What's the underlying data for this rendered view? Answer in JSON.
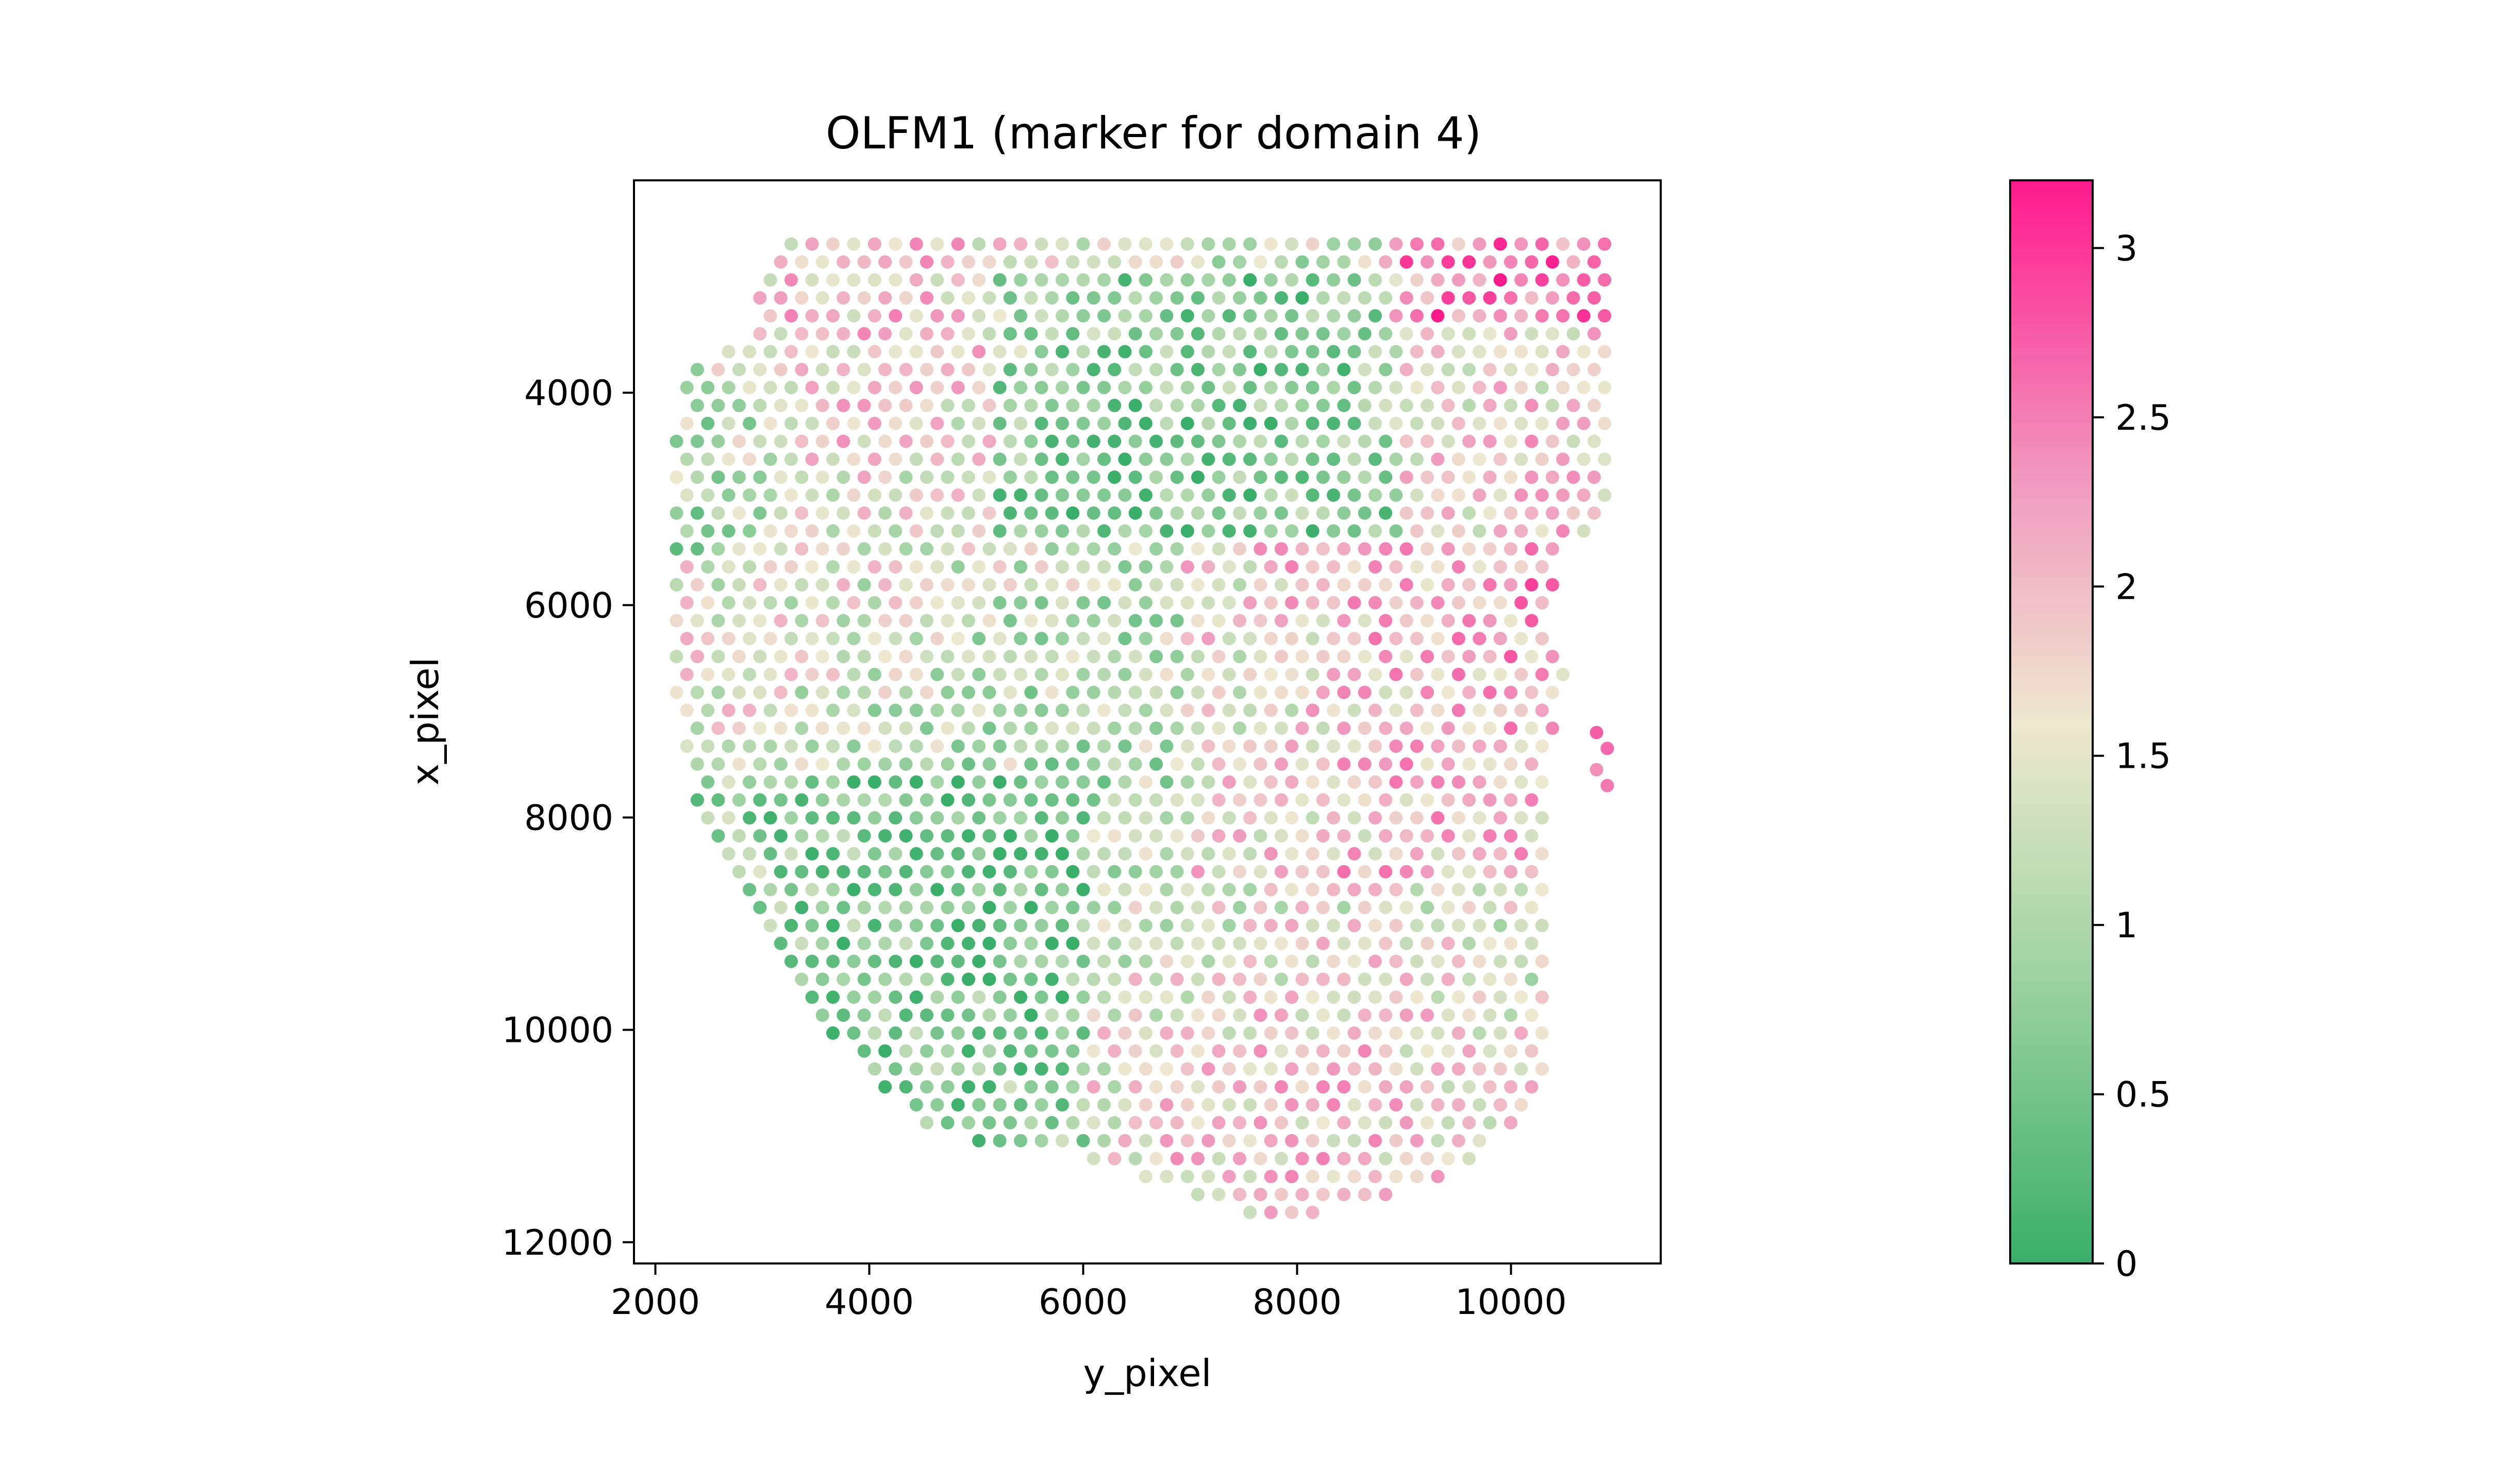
{
  "chart_data": {
    "type": "scatter",
    "title": "OLFM1 (marker for domain 4)",
    "xlabel": "y_pixel",
    "ylabel": "x_pixel",
    "xlim": [
      1800,
      11400
    ],
    "ylim": [
      12200,
      2000
    ],
    "y_inverted": true,
    "xticks": [
      2000,
      4000,
      6000,
      8000,
      10000
    ],
    "xtick_labels": [
      "2000",
      "4000",
      "6000",
      "8000",
      "10000"
    ],
    "yticks": [
      4000,
      6000,
      8000,
      10000,
      12000
    ],
    "ytick_labels": [
      "4000",
      "6000",
      "8000",
      "10000",
      "12000"
    ],
    "grid": false,
    "point_color_encoding": "OLFM1 expression",
    "spot_spacing": 195,
    "tissue_boundary": [
      [
        3150,
        2600
      ],
      [
        10900,
        2600
      ],
      [
        10900,
        4200
      ],
      [
        10950,
        5200
      ],
      [
        10500,
        5500
      ],
      [
        10350,
        6200
      ],
      [
        10500,
        6600
      ],
      [
        10400,
        7200
      ],
      [
        10300,
        8200
      ],
      [
        10300,
        9200
      ],
      [
        10350,
        10400
      ],
      [
        10100,
        10900
      ],
      [
        9200,
        11500
      ],
      [
        8300,
        11700
      ],
      [
        7700,
        11800
      ],
      [
        6800,
        11500
      ],
      [
        6000,
        11200
      ],
      [
        5400,
        11150
      ],
      [
        4600,
        11000
      ],
      [
        4050,
        10500
      ],
      [
        3600,
        10000
      ],
      [
        3100,
        9300
      ],
      [
        2700,
        8600
      ],
      [
        2350,
        7800
      ],
      [
        2200,
        7000
      ],
      [
        2100,
        6000
      ],
      [
        2150,
        4500
      ],
      [
        2300,
        3800
      ],
      [
        2800,
        3500
      ]
    ],
    "outlier_spots": [
      [
        10800,
        7200
      ],
      [
        10900,
        7350
      ],
      [
        10800,
        7550
      ],
      [
        10900,
        7700
      ]
    ],
    "colorbar": {
      "vmin": 0,
      "vmax": 3.2,
      "ticks": [
        0,
        0.5,
        1,
        1.5,
        2,
        2.5,
        3
      ],
      "tick_labels": [
        "0",
        "0.5",
        "1",
        "1.5",
        "2",
        "2.5",
        "3"
      ],
      "colors": [
        {
          "value": 0,
          "color": "#3aaf6a"
        },
        {
          "value": 0.9,
          "color": "#a3d4a5"
        },
        {
          "value": 1.6,
          "color": "#efe8d0"
        },
        {
          "value": 2.3,
          "color": "#f09bbf"
        },
        {
          "value": 3.2,
          "color": "#ff1a8c"
        }
      ]
    }
  }
}
